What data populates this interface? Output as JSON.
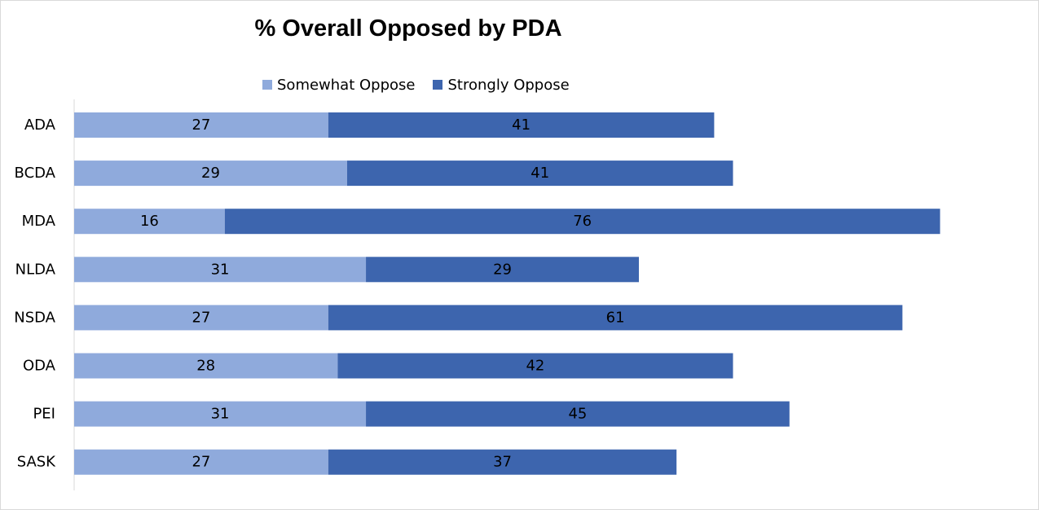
{
  "chart_data": {
    "type": "bar",
    "orientation": "horizontal",
    "stacked": true,
    "title": "% Overall Opposed by PDA",
    "categories": [
      "ADA",
      "BCDA",
      "MDA",
      "NLDA",
      "NSDA",
      "ODA",
      "PEI",
      "SASK"
    ],
    "series": [
      {
        "name": "Somewhat Oppose",
        "color": "#8faadc",
        "values": [
          27,
          29,
          16,
          31,
          27,
          28,
          31,
          27
        ]
      },
      {
        "name": "Strongly Oppose",
        "color": "#3d65ae",
        "values": [
          41,
          41,
          76,
          29,
          61,
          42,
          45,
          37
        ]
      }
    ],
    "data_labels": true,
    "legend_position": "top",
    "x_axis_visible": false,
    "grid": false
  }
}
